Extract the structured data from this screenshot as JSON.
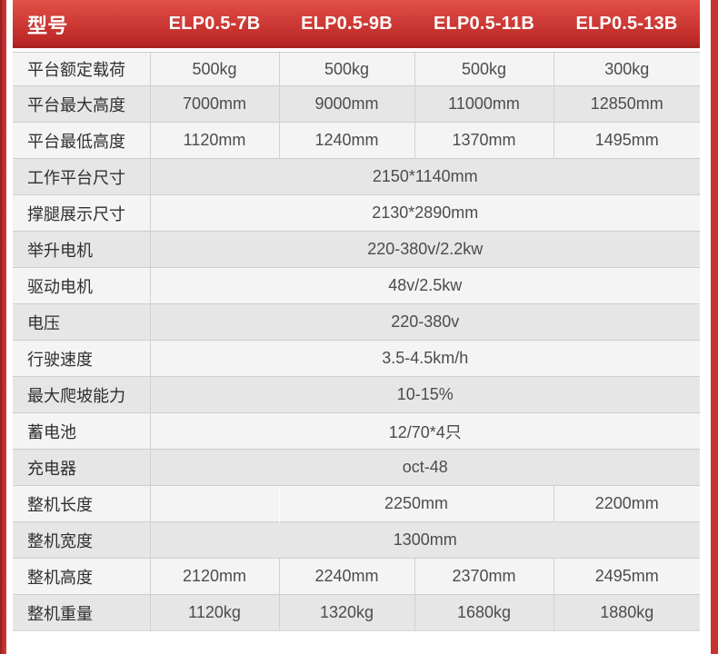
{
  "colors": {
    "edge_red": "#c93231",
    "header_red_top": "#e25048",
    "header_red_bottom": "#bb2926",
    "row_light": "#f4f4f4",
    "row_shaded": "#e6e6e6",
    "cell_border": "#cdcdcd",
    "header_text": "#ffffff"
  },
  "table": {
    "header": {
      "model_label": "型号",
      "models": [
        "ELP0.5-7B",
        "ELP0.5-9B",
        "ELP0.5-11B",
        "ELP0.5-13B"
      ]
    },
    "rows": [
      {
        "label": "平台额定载荷",
        "shaded": false,
        "cells": [
          {
            "text": "500kg",
            "span": 1
          },
          {
            "text": "500kg",
            "span": 1
          },
          {
            "text": "500kg",
            "span": 1
          },
          {
            "text": "300kg",
            "span": 1
          }
        ]
      },
      {
        "label": "平台最大高度",
        "shaded": true,
        "cells": [
          {
            "text": "7000mm",
            "span": 1
          },
          {
            "text": "9000mm",
            "span": 1
          },
          {
            "text": "11000mm",
            "span": 1
          },
          {
            "text": "12850mm",
            "span": 1
          }
        ]
      },
      {
        "label": "平台最低高度",
        "shaded": false,
        "cells": [
          {
            "text": "1120mm",
            "span": 1
          },
          {
            "text": "1240mm",
            "span": 1
          },
          {
            "text": "1370mm",
            "span": 1
          },
          {
            "text": "1495mm",
            "span": 1
          }
        ]
      },
      {
        "label": "工作平台尺寸",
        "shaded": true,
        "cells": [
          {
            "text": "2150*1140mm",
            "span": 4
          }
        ]
      },
      {
        "label": "撑腿展示尺寸",
        "shaded": false,
        "cells": [
          {
            "text": "2130*2890mm",
            "span": 4
          }
        ]
      },
      {
        "label": "举升电机",
        "shaded": true,
        "cells": [
          {
            "text": "220-380v/2.2kw",
            "span": 4
          }
        ]
      },
      {
        "label": "驱动电机",
        "shaded": false,
        "cells": [
          {
            "text": "48v/2.5kw",
            "span": 4
          }
        ]
      },
      {
        "label": "电压",
        "shaded": true,
        "cells": [
          {
            "text": "220-380v",
            "span": 4
          }
        ]
      },
      {
        "label": "行驶速度",
        "shaded": false,
        "cells": [
          {
            "text": "3.5-4.5km/h",
            "span": 4
          }
        ]
      },
      {
        "label": "最大爬坡能力",
        "shaded": true,
        "cells": [
          {
            "text": "10-15%",
            "span": 4
          }
        ]
      },
      {
        "label": "蓄电池",
        "shaded": false,
        "cells": [
          {
            "text": "12/70*4只",
            "span": 4
          }
        ]
      },
      {
        "label": "充电器",
        "shaded": true,
        "cells": [
          {
            "text": "oct-48",
            "span": 4
          }
        ]
      },
      {
        "label": "整机长度",
        "shaded": false,
        "cells": [
          {
            "text": "",
            "span": 1
          },
          {
            "text": "2250mm",
            "span": 2,
            "merge_left": true
          },
          {
            "text": "2200mm",
            "span": 1
          }
        ]
      },
      {
        "label": "整机宽度",
        "shaded": true,
        "cells": [
          {
            "text": "1300mm",
            "span": 4
          }
        ]
      },
      {
        "label": "整机高度",
        "shaded": false,
        "cells": [
          {
            "text": "2120mm",
            "span": 1
          },
          {
            "text": "2240mm",
            "span": 1
          },
          {
            "text": "2370mm",
            "span": 1
          },
          {
            "text": "2495mm",
            "span": 1
          }
        ]
      },
      {
        "label": "整机重量",
        "shaded": true,
        "cells": [
          {
            "text": "1120kg",
            "span": 1
          },
          {
            "text": "1320kg",
            "span": 1
          },
          {
            "text": "1680kg",
            "span": 1
          },
          {
            "text": "1880kg",
            "span": 1
          }
        ]
      }
    ]
  }
}
